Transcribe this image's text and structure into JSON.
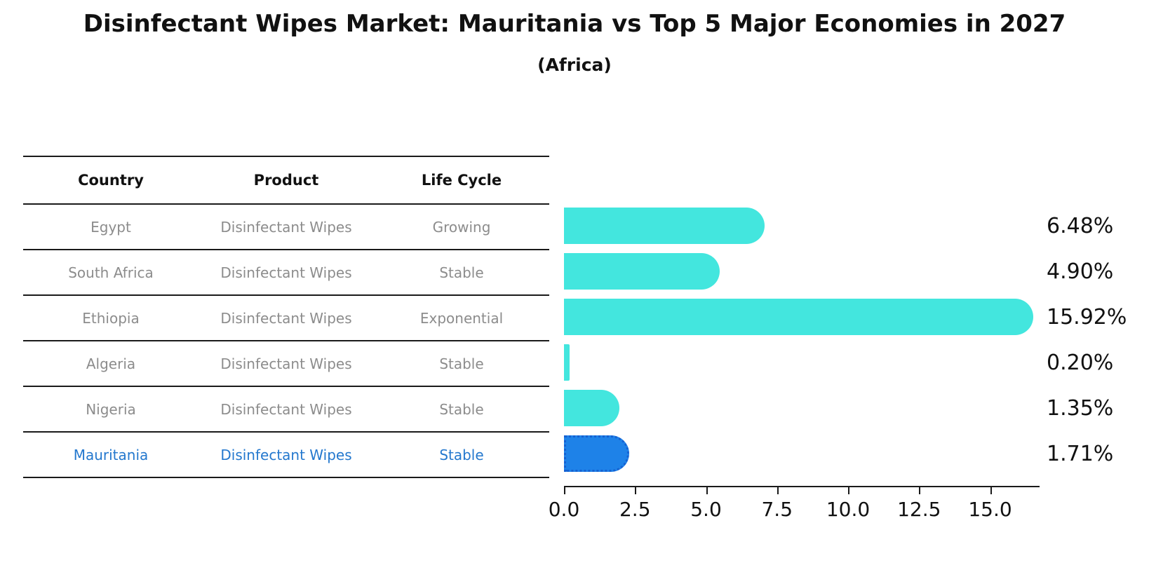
{
  "title": "Disinfectant Wipes Market: Mauritania vs Top 5 Major Economies in 2027",
  "subtitle": "(Africa)",
  "table": {
    "headers": [
      "Country",
      "Product",
      "Life Cycle"
    ]
  },
  "chart_data": {
    "type": "bar",
    "orientation": "horizontal",
    "title": "Disinfectant Wipes Market: Mauritania vs Top 5 Major Economies in 2027",
    "subtitle": "(Africa)",
    "columns": [
      "Country",
      "Product",
      "Life Cycle"
    ],
    "rows": [
      {
        "country": "Egypt",
        "product": "Disinfectant Wipes",
        "life_cycle": "Growing",
        "value": 6.48,
        "value_label": "6.48%",
        "highlight": false
      },
      {
        "country": "South Africa",
        "product": "Disinfectant Wipes",
        "life_cycle": "Stable",
        "value": 4.9,
        "value_label": "4.90%",
        "highlight": false
      },
      {
        "country": "Ethiopia",
        "product": "Disinfectant Wipes",
        "life_cycle": "Exponential",
        "value": 15.92,
        "value_label": "15.92%",
        "highlight": false
      },
      {
        "country": "Algeria",
        "product": "Disinfectant Wipes",
        "life_cycle": "Stable",
        "value": 0.2,
        "value_label": "0.20%",
        "highlight": false
      },
      {
        "country": "Nigeria",
        "product": "Disinfectant Wipes",
        "life_cycle": "Stable",
        "value": 1.35,
        "value_label": "1.35%",
        "highlight": false
      },
      {
        "country": "Mauritania",
        "product": "Disinfectant Wipes",
        "life_cycle": "Stable",
        "value": 1.71,
        "value_label": "1.71%",
        "highlight": true
      }
    ],
    "xlim": [
      0,
      16.74
    ],
    "xticks": [
      0.0,
      2.5,
      5.0,
      7.5,
      10.0,
      12.5,
      15.0
    ],
    "xtick_labels": [
      "0.0",
      "2.5",
      "5.0",
      "7.5",
      "10.0",
      "12.5",
      "15.0"
    ],
    "grid": false,
    "legend": false,
    "colors": {
      "bar": "#43e6de",
      "highlight_bar": "#1e82e8",
      "highlight_border": "#1561d2",
      "highlight_text": "#2478ce",
      "row_text": "#8c8c8c",
      "header_text": "#111111",
      "axis": "#1a1a1a"
    }
  }
}
